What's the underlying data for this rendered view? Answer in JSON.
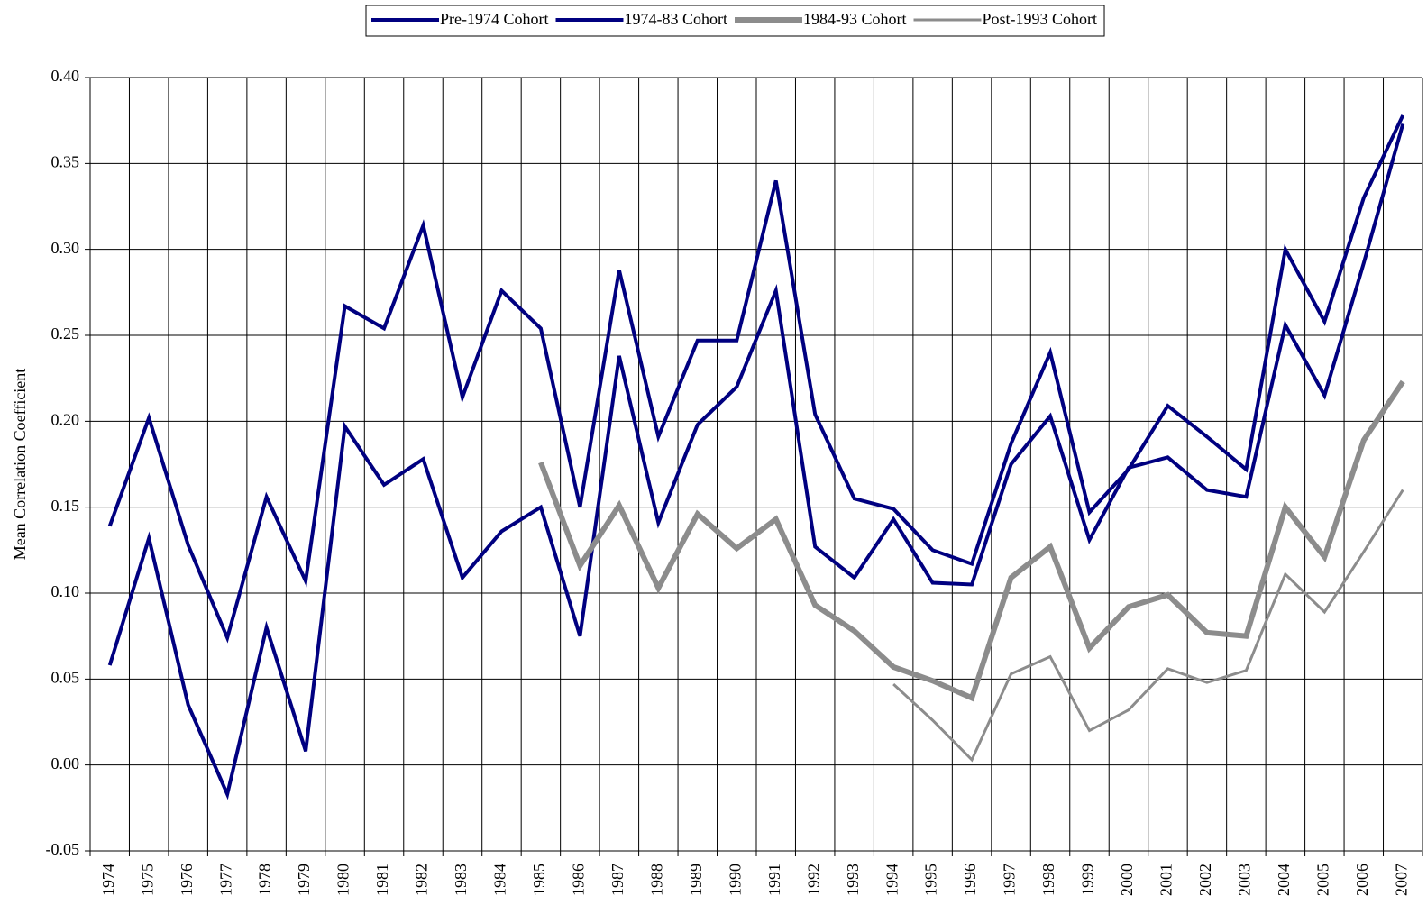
{
  "chart_data": {
    "type": "line",
    "y_label": "Mean Correlation Coefficient",
    "categories": [
      "1974",
      "1975",
      "1976",
      "1977",
      "1978",
      "1979",
      "1980",
      "1981",
      "1982",
      "1983",
      "1984",
      "1985",
      "1986",
      "1987",
      "1988",
      "1989",
      "1990",
      "1991",
      "1992",
      "1993",
      "1994",
      "1995",
      "1996",
      "1997",
      "1998",
      "1999",
      "2000",
      "2001",
      "2002",
      "2003",
      "2004",
      "2005",
      "2006",
      "2007"
    ],
    "series": [
      {
        "name": "Pre-1974 Cohort",
        "color": "#000080",
        "values": [
          0.139,
          0.202,
          0.128,
          0.074,
          0.156,
          0.107,
          0.267,
          0.254,
          0.314,
          0.214,
          0.276,
          0.254,
          0.15,
          0.288,
          0.191,
          0.247,
          0.247,
          0.34,
          0.204,
          0.155,
          0.149,
          0.125,
          0.117,
          0.187,
          0.24,
          0.147,
          0.172,
          0.209,
          0.191,
          0.172,
          0.3,
          0.258,
          0.33,
          0.378
        ]
      },
      {
        "name": "1974-83 Cohort",
        "color": "#000080",
        "values": [
          0.058,
          0.132,
          0.035,
          -0.017,
          0.08,
          0.008,
          0.197,
          0.163,
          0.178,
          0.109,
          0.136,
          0.15,
          0.075,
          0.238,
          0.141,
          0.198,
          0.22,
          0.276,
          0.127,
          0.109,
          0.143,
          0.106,
          0.105,
          0.175,
          0.203,
          0.131,
          0.173,
          0.179,
          0.16,
          0.156,
          0.256,
          0.215,
          0.292,
          0.373
        ]
      },
      {
        "name": "1984-93 Cohort",
        "color": "#8c8c8c",
        "values": [
          null,
          null,
          null,
          null,
          null,
          null,
          null,
          null,
          null,
          null,
          null,
          0.176,
          0.116,
          0.151,
          0.103,
          0.146,
          0.126,
          0.143,
          0.093,
          0.078,
          0.057,
          0.049,
          0.039,
          0.109,
          0.127,
          0.068,
          0.092,
          0.099,
          0.077,
          0.075,
          0.15,
          0.121,
          0.189,
          0.223
        ]
      },
      {
        "name": "Post-1993 Cohort",
        "color": "#8c8c8c",
        "values": [
          null,
          null,
          null,
          null,
          null,
          null,
          null,
          null,
          null,
          null,
          null,
          null,
          null,
          null,
          null,
          null,
          null,
          null,
          null,
          null,
          0.047,
          0.026,
          0.003,
          0.053,
          0.063,
          0.02,
          0.032,
          0.056,
          0.048,
          0.055,
          0.111,
          0.089,
          0.124,
          0.16
        ]
      }
    ],
    "ylim": [
      -0.05,
      0.4
    ],
    "yticks": [
      {
        "value": -0.05,
        "label": "-0.05"
      },
      {
        "value": 0,
        "label": "0.00"
      },
      {
        "value": 0.05,
        "label": "0.05"
      },
      {
        "value": 0.1,
        "label": "0.10"
      },
      {
        "value": 0.15,
        "label": "0.15"
      },
      {
        "value": 0.2,
        "label": "0.20"
      },
      {
        "value": 0.25,
        "label": "0.25"
      },
      {
        "value": 0.3,
        "label": "0.30"
      },
      {
        "value": 0.35,
        "label": "0.35"
      },
      {
        "value": 0.4,
        "label": "0.40"
      }
    ],
    "grid": true,
    "legend": "top"
  }
}
